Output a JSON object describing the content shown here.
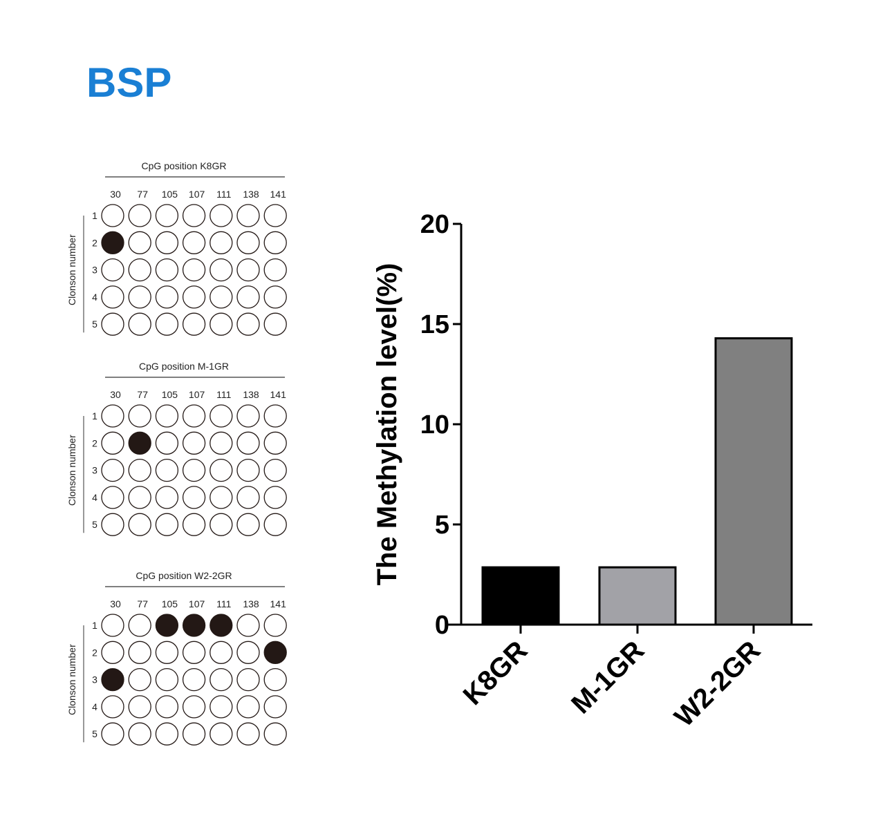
{
  "title": "BSP",
  "title_color": "#1a7fd4",
  "chart_data": [
    {
      "type": "table",
      "panel": "K8GR",
      "header": "CpG position  K8GR",
      "ylabel": "Clonson number",
      "positions": [
        "30",
        "77",
        "105",
        "107",
        "111",
        "138",
        "141"
      ],
      "clones": [
        "1",
        "2",
        "3",
        "4",
        "5"
      ],
      "methylated": [
        [
          0,
          0,
          0,
          0,
          0,
          0,
          0
        ],
        [
          1,
          0,
          0,
          0,
          0,
          0,
          0
        ],
        [
          0,
          0,
          0,
          0,
          0,
          0,
          0
        ],
        [
          0,
          0,
          0,
          0,
          0,
          0,
          0
        ],
        [
          0,
          0,
          0,
          0,
          0,
          0,
          0
        ]
      ]
    },
    {
      "type": "table",
      "panel": "M-1GR",
      "header": "CpG position  M-1GR",
      "ylabel": "Clonson number",
      "positions": [
        "30",
        "77",
        "105",
        "107",
        "111",
        "138",
        "141"
      ],
      "clones": [
        "1",
        "2",
        "3",
        "4",
        "5"
      ],
      "methylated": [
        [
          0,
          0,
          0,
          0,
          0,
          0,
          0
        ],
        [
          0,
          1,
          0,
          0,
          0,
          0,
          0
        ],
        [
          0,
          0,
          0,
          0,
          0,
          0,
          0
        ],
        [
          0,
          0,
          0,
          0,
          0,
          0,
          0
        ],
        [
          0,
          0,
          0,
          0,
          0,
          0,
          0
        ]
      ]
    },
    {
      "type": "table",
      "panel": "W2-2GR",
      "header": "CpG position  W2-2GR",
      "ylabel": "Clonson number",
      "positions": [
        "30",
        "77",
        "105",
        "107",
        "111",
        "138",
        "141"
      ],
      "clones": [
        "1",
        "2",
        "3",
        "4",
        "5"
      ],
      "methylated": [
        [
          0,
          0,
          1,
          1,
          1,
          0,
          0
        ],
        [
          0,
          0,
          0,
          0,
          0,
          0,
          1
        ],
        [
          1,
          0,
          0,
          0,
          0,
          0,
          0
        ],
        [
          0,
          0,
          0,
          0,
          0,
          0,
          0
        ],
        [
          0,
          0,
          0,
          0,
          0,
          0,
          0
        ]
      ]
    },
    {
      "type": "bar",
      "categories": [
        "K8GR",
        "M-1GR",
        "W2-2GR"
      ],
      "values": [
        2.86,
        2.86,
        14.29
      ],
      "colors": [
        "#000000",
        "#a2a2a7",
        "#808080"
      ],
      "ylabel": "The Methylation level(%)",
      "ylim": [
        0,
        20
      ],
      "yticks": [
        "0",
        "5",
        "10",
        "15",
        "20"
      ],
      "grid": false
    }
  ]
}
